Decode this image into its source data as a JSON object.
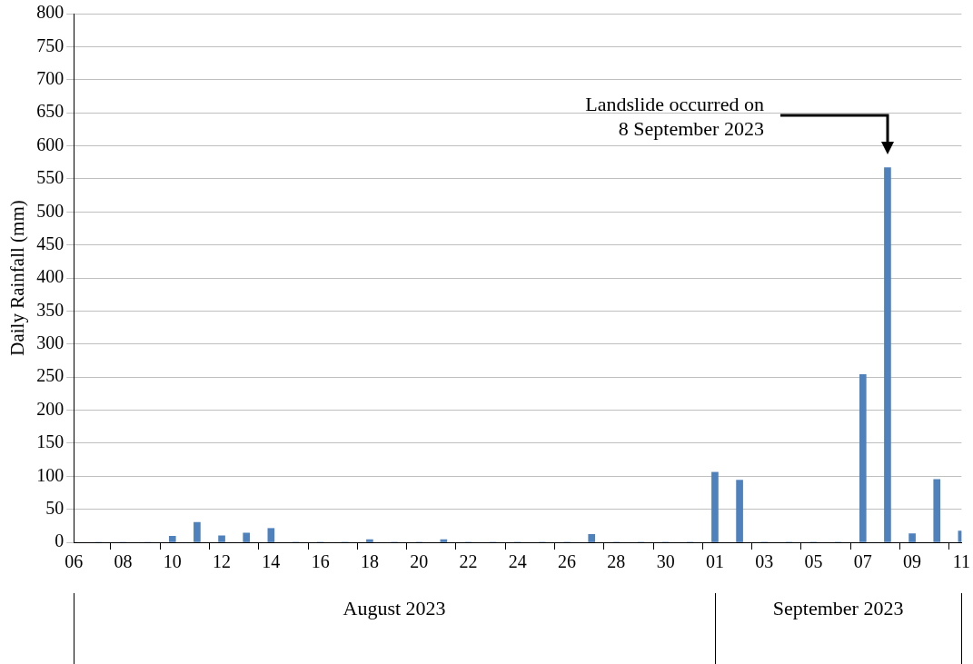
{
  "chart_data": {
    "type": "bar",
    "ylabel": "Daily Rainfall (mm)",
    "categories": [
      "06",
      null,
      "08",
      null,
      "10",
      null,
      "12",
      null,
      "14",
      null,
      "16",
      null,
      "18",
      null,
      "20",
      null,
      "22",
      null,
      "24",
      null,
      "26",
      null,
      "28",
      null,
      "30",
      null,
      "01",
      null,
      "03",
      null,
      "05",
      null,
      "07",
      null,
      "09",
      null,
      "11"
    ],
    "values": [
      0,
      0,
      0,
      0,
      9,
      30,
      10,
      14,
      21,
      0,
      0,
      0,
      4,
      0,
      0,
      4,
      0,
      0,
      0,
      0,
      0,
      12,
      0,
      0,
      0,
      0,
      106,
      94,
      0,
      0,
      0,
      0,
      254,
      567,
      13,
      95,
      17
    ],
    "color": "#4f81bd",
    "ylim": [
      0,
      800
    ],
    "yticks": [
      0,
      50,
      100,
      150,
      200,
      250,
      300,
      350,
      400,
      450,
      500,
      550,
      600,
      650,
      700,
      750,
      800
    ],
    "grid": "y",
    "legend": false,
    "annotations": [
      "Landslide occurred on\n8 September 2023",
      "August 2023",
      "September 2023"
    ]
  }
}
